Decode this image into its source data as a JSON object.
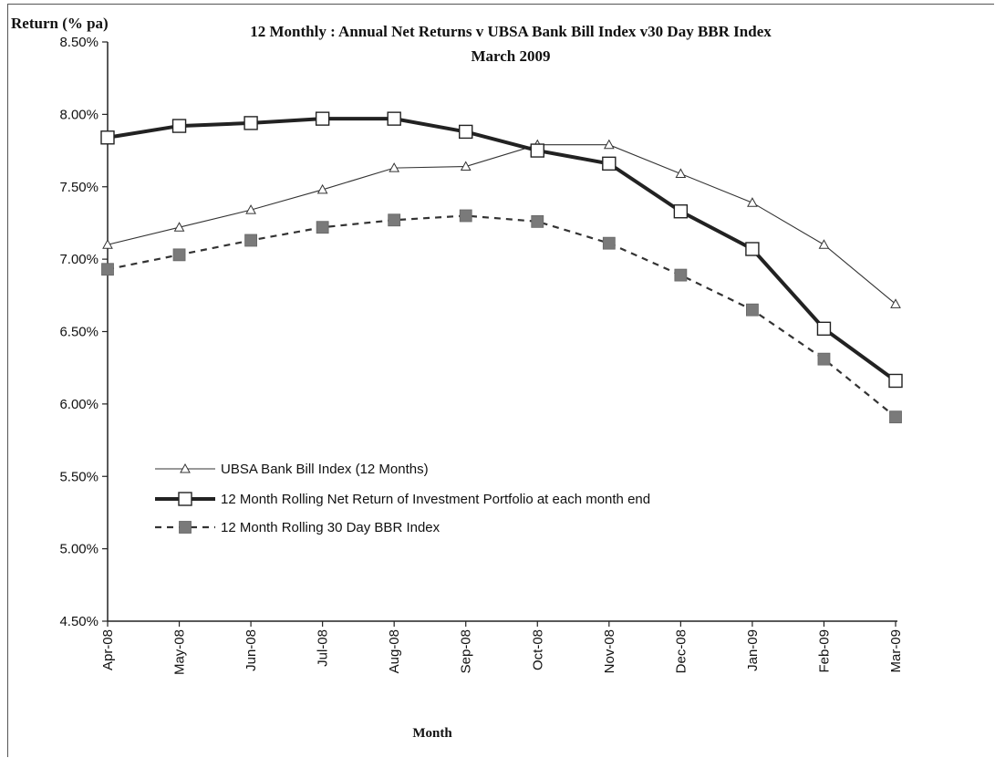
{
  "chart_data": {
    "type": "line",
    "title": "12 Monthly : Annual Net Returns v  UBSA  Bank Bill Index  v30 Day BBR Index",
    "subtitle": "March 2009",
    "ylabel": "Return (% pa)",
    "xlabel": "Month",
    "categories": [
      "Apr-08",
      "May-08",
      "Jun-08",
      "Jul-08",
      "Aug-08",
      "Sep-08",
      "Oct-08",
      "Nov-08",
      "Dec-08",
      "Jan-09",
      "Feb-09",
      "Mar-09"
    ],
    "ylim": [
      4.5,
      8.5
    ],
    "yticks": [
      "4.50%",
      "5.00%",
      "5.50%",
      "6.00%",
      "6.50%",
      "7.00%",
      "7.50%",
      "8.00%",
      "8.50%"
    ],
    "grid": false,
    "legend_position": "lower-left",
    "series": [
      {
        "name": "UBSA Bank Bill Index (12 Months)",
        "marker": "triangle",
        "style": "thin",
        "color": "#333333",
        "values": [
          7.1,
          7.22,
          7.34,
          7.48,
          7.63,
          7.64,
          7.79,
          7.79,
          7.59,
          7.39,
          7.1,
          6.69
        ]
      },
      {
        "name": "12 Month Rolling Net Return of Investment Portfolio at each month end",
        "marker": "square-open",
        "style": "thick",
        "color": "#222222",
        "values": [
          7.84,
          7.92,
          7.94,
          7.97,
          7.97,
          7.88,
          7.75,
          7.66,
          7.33,
          7.07,
          6.52,
          6.16
        ]
      },
      {
        "name": "12 Month Rolling 30 Day BBR Index",
        "marker": "square-filled",
        "style": "dashed",
        "color": "#333333",
        "marker_color": "#7a7a7a",
        "values": [
          6.93,
          7.03,
          7.13,
          7.22,
          7.27,
          7.3,
          7.26,
          7.11,
          6.89,
          6.65,
          6.31,
          5.91
        ]
      }
    ]
  }
}
